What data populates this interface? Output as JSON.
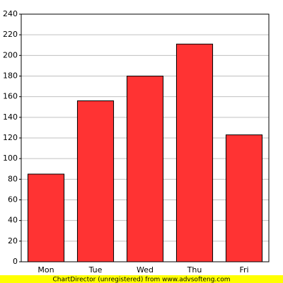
{
  "chart_data": {
    "type": "bar",
    "categories": [
      "Mon",
      "Tue",
      "Wed",
      "Thu",
      "Fri"
    ],
    "values": [
      85,
      156,
      180,
      211,
      123
    ],
    "color": "#ff3333",
    "ylim": [
      0,
      240
    ],
    "yticks": [
      0,
      20,
      40,
      60,
      80,
      100,
      120,
      140,
      160,
      180,
      200,
      220,
      240
    ],
    "grid": true,
    "footer": "ChartDirector (unregistered) from www.advsofteng.com"
  }
}
